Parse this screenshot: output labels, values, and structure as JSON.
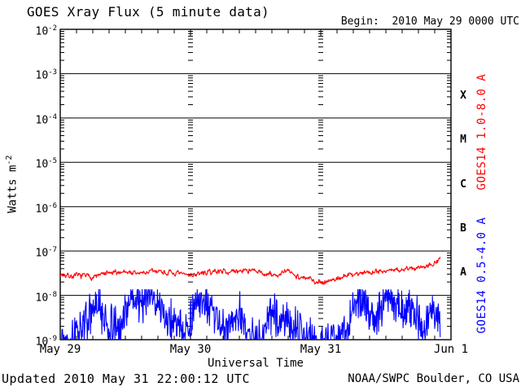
{
  "header": {
    "title": "GOES Xray Flux (5 minute data)",
    "begin_label": "Begin:  2010 May 29 0000 UTC"
  },
  "footer": {
    "updated": "Updated 2010 May 31 22:00:12 UTC",
    "source": "NOAA/SWPC Boulder, CO USA"
  },
  "chart_data": {
    "type": "line",
    "title": "GOES Xray Flux (5 minute data)",
    "xlabel": "Universal Time",
    "ylabel_base": "Watts m",
    "ylabel_exp": "-2",
    "begin": "2010 May 29 0000 UTC",
    "updated": "2010 May 31 22:00:12 UTC",
    "x_span_hours": 72,
    "data_end_hour": 70,
    "sample_cadence_minutes": 5,
    "x_ticks": [
      {
        "label": "May 29",
        "hour": 0
      },
      {
        "label": "May 30",
        "hour": 24
      },
      {
        "label": "May 31",
        "hour": 48
      },
      {
        "label": "Jun 1",
        "hour": 72
      }
    ],
    "minor_x_tick_hours": 3,
    "y_scale": "log",
    "ylim": [
      1e-09,
      0.01
    ],
    "y_log_max_exp": -2,
    "y_log_min_exp": -9,
    "y_tick_exponents": [
      -2,
      -3,
      -4,
      -5,
      -6,
      -7,
      -8,
      -9
    ],
    "flare_classes": [
      {
        "label": "X",
        "log_flux": -3.5
      },
      {
        "label": "M",
        "log_flux": -4.5
      },
      {
        "label": "C",
        "log_flux": -5.5
      },
      {
        "label": "B",
        "log_flux": -6.5
      },
      {
        "label": "A",
        "log_flux": -7.5
      }
    ],
    "grid": {
      "horizontal": "solid line at each decade",
      "vertical": "log-minor-tick dash columns at day boundaries"
    },
    "colors": {
      "long_channel": "#ff0000",
      "short_channel": "#0000ff",
      "axis": "#000000",
      "background": "#ffffff"
    },
    "series": [
      {
        "name": "GOES14 1.0-8.0 A",
        "axis_label": "GOES14 1.0-8.0 A",
        "color": "#ff0000",
        "seed": 7,
        "noise_log10": 0.13,
        "noise_smooth": 0.5,
        "floor": 1e-10,
        "ceiling": 1e-07,
        "sample_hours": [
          0,
          2,
          4,
          6,
          8,
          10,
          12,
          14,
          16,
          18,
          20,
          22,
          24,
          26,
          28,
          30,
          32,
          34,
          36,
          38,
          40,
          42,
          44,
          46,
          48,
          50,
          52,
          54,
          56,
          58,
          60,
          62,
          64,
          66,
          68,
          70
        ],
        "flux_w_m2": [
          3e-08,
          2.7e-08,
          2.8e-08,
          2.6e-08,
          3e-08,
          3.2e-08,
          3.5e-08,
          3.1e-08,
          3.3e-08,
          3.6e-08,
          3.2e-08,
          3e-08,
          2.9e-08,
          3.1e-08,
          3.4e-08,
          3.6e-08,
          3.3e-08,
          3.8e-08,
          3.4e-08,
          3e-08,
          2.8e-08,
          3.6e-08,
          2.6e-08,
          2.3e-08,
          2e-08,
          2.2e-08,
          2.6e-08,
          3e-08,
          3.3e-08,
          3.5e-08,
          3.6e-08,
          3.7e-08,
          3.9e-08,
          4.3e-08,
          5e-08,
          6.2e-08
        ]
      },
      {
        "name": "GOES14 0.5-4.0 A",
        "axis_label": "GOES14 0.5-4.0 A",
        "color": "#0000ff",
        "seed": 13,
        "noise_log10": 0.55,
        "noise_smooth": 0.0,
        "floor": 1e-09,
        "ceiling": 1.35e-08,
        "sample_hours": [
          0,
          1,
          2,
          3,
          4,
          5,
          6,
          7,
          8,
          9,
          10,
          11,
          12,
          13,
          14,
          15,
          16,
          17,
          18,
          19,
          20,
          21,
          22,
          23,
          24,
          25,
          26,
          27,
          28,
          29,
          30,
          31,
          32,
          33,
          34,
          35,
          36,
          37,
          38,
          39,
          40,
          41,
          42,
          43,
          44,
          45,
          46,
          47,
          48,
          49,
          50,
          51,
          52,
          53,
          54,
          55,
          56,
          57,
          58,
          59,
          60,
          61,
          62,
          63,
          64,
          65,
          66,
          67,
          68,
          69,
          70
        ],
        "flux_w_m2": [
          1e-09,
          1e-09,
          1e-09,
          1.2e-09,
          2e-09,
          3e-09,
          4e-09,
          6e-09,
          3e-09,
          2e-09,
          2e-09,
          1.5e-09,
          5e-09,
          8e-09,
          9e-09,
          7e-09,
          8e-09,
          1e-08,
          6e-09,
          4e-09,
          3e-09,
          2.5e-09,
          2e-09,
          1.5e-09,
          3e-09,
          6e-09,
          7e-09,
          5e-09,
          4e-09,
          3e-09,
          2e-09,
          1.5e-09,
          3e-09,
          4e-09,
          2e-09,
          1.2e-09,
          1e-09,
          1e-09,
          2e-09,
          4e-09,
          3.5e-09,
          3e-09,
          2.5e-09,
          2e-09,
          1.5e-09,
          1.2e-09,
          1e-09,
          1e-09,
          1e-09,
          1e-09,
          1e-09,
          1e-09,
          1.2e-09,
          2e-09,
          5e-09,
          9e-09,
          6e-09,
          4e-09,
          3e-09,
          5e-09,
          8e-09,
          1e-08,
          7e-09,
          5e-09,
          6e-09,
          4e-09,
          3e-09,
          2e-09,
          3e-09,
          4e-09,
          3e-09
        ]
      }
    ]
  }
}
